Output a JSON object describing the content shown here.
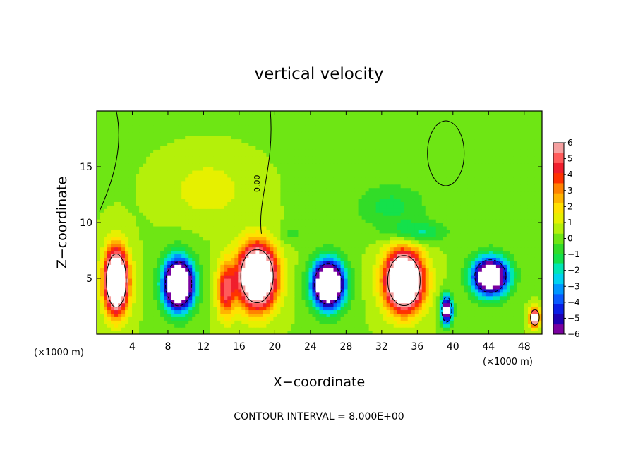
{
  "chart_data": {
    "type": "heatmap",
    "title": "vertical velocity",
    "xlabel": "X−coordinate",
    "ylabel": "Z−coordinate",
    "x_unit": "(×1000 m)",
    "y_unit": "(×1000 m)",
    "xlim": [
      0,
      50
    ],
    "ylim": [
      0,
      20
    ],
    "xticks": [
      "4",
      "8",
      "12",
      "16",
      "20",
      "24",
      "28",
      "32",
      "36",
      "40",
      "44",
      "48"
    ],
    "yticks": [
      "5",
      "10",
      "15"
    ],
    "colorbar": {
      "ticks": [
        "6",
        "5",
        "4",
        "3",
        "2",
        "1",
        "0",
        "−1",
        "−2",
        "−3",
        "−4",
        "−5",
        "−6"
      ],
      "range": [
        -6,
        6
      ],
      "colors": [
        "#7a00a0",
        "#1e00b4",
        "#0a1ee6",
        "#0a5aff",
        "#0096ff",
        "#00d2f0",
        "#00e6b4",
        "#14e14b",
        "#32dc28",
        "#6ee614",
        "#b4f00a",
        "#e6f000",
        "#ffe100",
        "#ffb400",
        "#ff8200",
        "#ff3200",
        "#f01e2d",
        "#ff5a5a",
        "#f5a0a0"
      ]
    },
    "contour_label": "0.00",
    "footer": "CONTOUR INTERVAL = 8.000E+00",
    "features": [
      {
        "x": 2.2,
        "z": 4.8,
        "rx": 1.6,
        "rz": 3.4,
        "w": 12
      },
      {
        "x": 9.2,
        "z": 4.5,
        "rx": 2.1,
        "rz": 2.8,
        "w": -12
      },
      {
        "x": 18.0,
        "z": 5.2,
        "rx": 2.6,
        "rz": 3.4,
        "w": 12
      },
      {
        "x": 26.0,
        "z": 4.5,
        "rx": 2.2,
        "rz": 2.6,
        "w": -12
      },
      {
        "x": 34.5,
        "z": 4.8,
        "rx": 2.6,
        "rz": 3.2,
        "w": 12
      },
      {
        "x": 39.3,
        "z": 2.2,
        "rx": 0.8,
        "rz": 1.6,
        "w": -8
      },
      {
        "x": 44.2,
        "z": 5.2,
        "rx": 2.5,
        "rz": 2.1,
        "w": -10
      },
      {
        "x": 49.2,
        "z": 1.5,
        "rx": 0.7,
        "rz": 1.0,
        "w": 8
      },
      {
        "x": 12.5,
        "z": 13.0,
        "rx": 5.0,
        "rz": 3.0,
        "w": 1.2
      },
      {
        "x": 41.0,
        "z": 16.5,
        "rx": 1.6,
        "rz": 2.5,
        "w": -0.5
      },
      {
        "x": 33.0,
        "z": 11.5,
        "rx": 5.0,
        "rz": 2.5,
        "w": -1.5
      },
      {
        "x": 36.0,
        "z": 9.2,
        "rx": 4.0,
        "rz": 1.2,
        "w": -2.0
      },
      {
        "x": 22.0,
        "z": 9.0,
        "rx": 2.0,
        "rz": 1.0,
        "w": -0.8
      },
      {
        "x": 14.5,
        "z": 4.0,
        "rx": 1.2,
        "rz": 3.0,
        "w": 4.5
      }
    ]
  }
}
